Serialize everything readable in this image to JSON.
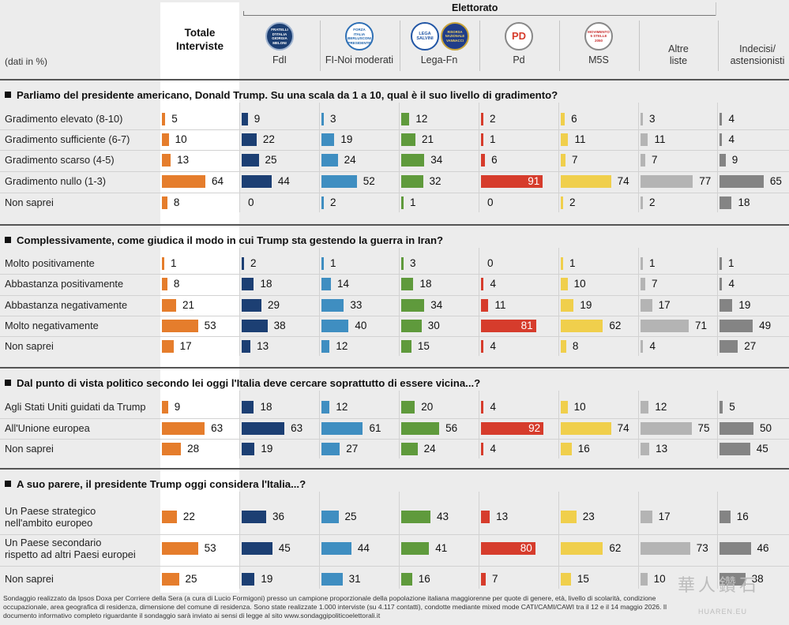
{
  "header": {
    "electorate_label": "Elettorato",
    "unit_label": "(dati in %)",
    "total_label": "Totale\nInterviste",
    "columns": [
      "FdI",
      "FI-Noi moderati",
      "Lega-Fn",
      "Pd",
      "M5S",
      "Altre\nliste",
      "Indecisi/\nastensionisti"
    ],
    "logos": {
      "fdi": [
        "FRATELLI",
        "D'ITALIA",
        "GIORGIA",
        "MELONI"
      ],
      "fi": [
        "FORZA",
        "ITALIA",
        "BERLUSCONI",
        "PRESIDENTE"
      ],
      "lega": [
        "LEGA",
        "SALVINI"
      ],
      "rn": [
        "RISORSA",
        "NAZIONALE",
        "VANNACCI"
      ],
      "pd": "PD",
      "m5s": [
        "MOVIMENTO",
        "5 STELLE",
        "2050"
      ]
    }
  },
  "colors": {
    "total": "#e57d2c",
    "fdi": "#1c3f73",
    "fi": "#3f8ec1",
    "lega": "#5f9a3c",
    "pd": "#d63c2c",
    "m5s": "#f0cf4c",
    "altre": "#b4b4b4",
    "indecisi": "#848484"
  },
  "chart_data": {
    "type": "bar",
    "series_names": [
      "Totale Interviste",
      "FdI",
      "FI-Noi moderati",
      "Lega-Fn",
      "Pd",
      "M5S",
      "Altre liste",
      "Indecisi/astensionisti"
    ],
    "unit": "%",
    "questions": [
      {
        "title": "Parliamo del presidente americano, Donald Trump. Su una scala da 1 a 10, qual è il suo livello di gradimento?",
        "rows": [
          {
            "label": "Gradimento elevato (8-10)",
            "values": [
              5,
              9,
              3,
              12,
              2,
              6,
              3,
              4
            ]
          },
          {
            "label": "Gradimento sufficiente (6-7)",
            "values": [
              10,
              22,
              19,
              21,
              1,
              11,
              11,
              4
            ]
          },
          {
            "label": "Gradimento scarso (4-5)",
            "values": [
              13,
              25,
              24,
              34,
              6,
              7,
              7,
              9
            ]
          },
          {
            "label": "Gradimento nullo (1-3)",
            "values": [
              64,
              44,
              52,
              32,
              91,
              74,
              77,
              65
            ]
          },
          {
            "label": "Non saprei",
            "values": [
              8,
              0,
              2,
              1,
              0,
              2,
              2,
              18
            ]
          }
        ]
      },
      {
        "title": "Complessivamente, come giudica il modo  in cui Trump sta gestendo la guerra in Iran?",
        "rows": [
          {
            "label": "Molto positivamente",
            "values": [
              1,
              2,
              1,
              3,
              0,
              1,
              1,
              1
            ]
          },
          {
            "label": "Abbastanza positivamente",
            "values": [
              8,
              18,
              14,
              18,
              4,
              10,
              7,
              4
            ]
          },
          {
            "label": "Abbastanza negativamente",
            "values": [
              21,
              29,
              33,
              34,
              11,
              19,
              17,
              19
            ]
          },
          {
            "label": "Molto negativamente",
            "values": [
              53,
              38,
              40,
              30,
              81,
              62,
              71,
              49
            ]
          },
          {
            "label": "Non saprei",
            "values": [
              17,
              13,
              12,
              15,
              4,
              8,
              4,
              27
            ]
          }
        ]
      },
      {
        "title": "Dal punto di vista politico secondo lei oggi l'Italia deve cercare soprattutto di essere vicina...?",
        "rows": [
          {
            "label": "Agli Stati Uniti guidati da Trump",
            "values": [
              9,
              18,
              12,
              20,
              4,
              10,
              12,
              5
            ]
          },
          {
            "label": "All'Unione europea",
            "values": [
              63,
              63,
              61,
              56,
              92,
              74,
              75,
              50
            ]
          },
          {
            "label": "Non saprei",
            "values": [
              28,
              19,
              27,
              24,
              4,
              16,
              13,
              45
            ]
          }
        ]
      },
      {
        "title": "A suo parere, il presidente Trump oggi considera l'Italia...?",
        "rows": [
          {
            "label": "Un Paese strategico\nnell'ambito europeo",
            "values": [
              22,
              36,
              25,
              43,
              13,
              23,
              17,
              16
            ]
          },
          {
            "label": "Un Paese secondario\nrispetto ad altri Paesi europei",
            "values": [
              53,
              45,
              44,
              41,
              80,
              62,
              73,
              46
            ]
          },
          {
            "label": "Non saprei",
            "values": [
              25,
              19,
              31,
              16,
              7,
              15,
              10,
              38
            ]
          }
        ]
      }
    ]
  },
  "footnote": "Sondaggio realizzato da Ipsos Doxa per Corriere della Sera (a cura di Lucio Formigoni) presso un campione proporzionale della popolazione italiana maggiorenne per quote di genere, età, livello di scolarità, condizione occupazionale, area geografica di residenza, dimensione del comune di residenza. Sono state realizzate 1.000 interviste (su 4.117 contatti), condotte mediante mixed mode CATI/CAMI/CAWI tra il 12 e il 14 maggio 2026. Il documento informativo completo riguardante il sondaggio sarà inviato ai sensi di legge al sito www.sondaggipoliticoelettorali.it",
  "watermark": {
    "main": "華人鑽石",
    "sub": "HUAREN.EU"
  }
}
